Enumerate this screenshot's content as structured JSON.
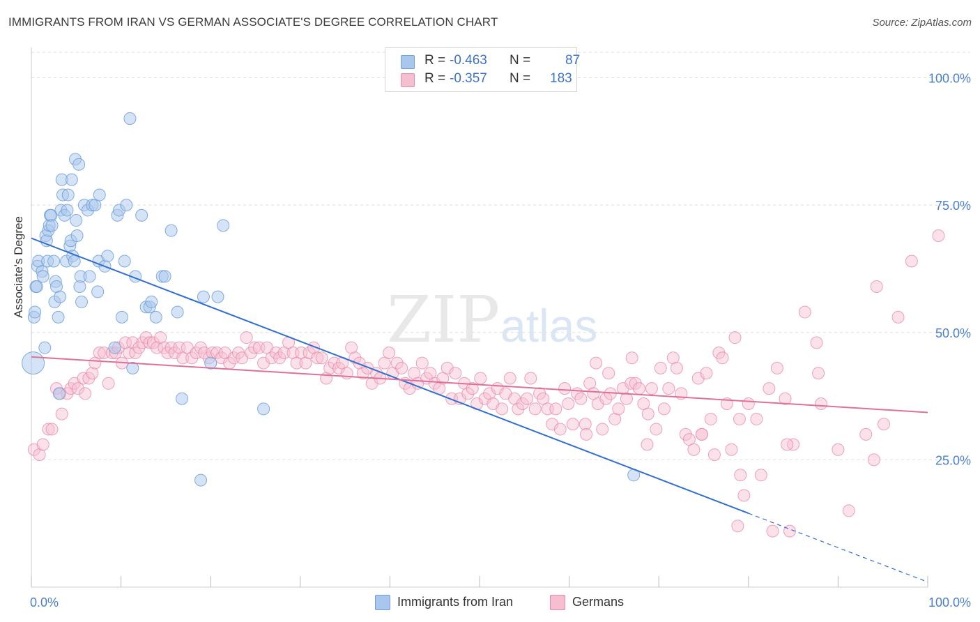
{
  "header": {
    "title": "IMMIGRANTS FROM IRAN VS GERMAN ASSOCIATE'S DEGREE CORRELATION CHART",
    "source": "Source: ZipAtlas.com"
  },
  "legend": {
    "rows": [
      {
        "r_label": "R =",
        "r_value": "-0.463",
        "n_label": "N =",
        "n_value": "87"
      },
      {
        "r_label": "R =",
        "r_value": "-0.357",
        "n_label": "N =",
        "n_value": "183"
      }
    ],
    "bottom": [
      {
        "label": "Immigrants from Iran"
      },
      {
        "label": "Germans"
      }
    ]
  },
  "colors": {
    "blue_fill": "#a9c7ee",
    "blue_stroke": "#6e9fd9",
    "blue_line": "#2f6fd0",
    "pink_fill": "#f6bfd0",
    "pink_stroke": "#e98bab",
    "pink_line": "#e0709a",
    "tick_label": "#4a7fd0",
    "grid": "#dddddd"
  },
  "watermark": {
    "zip": "ZIP",
    "atlas": "atlas"
  },
  "chart_data": {
    "type": "scatter",
    "title": "IMMIGRANTS FROM IRAN VS GERMAN ASSOCIATE'S DEGREE CORRELATION CHART",
    "xlabel": "",
    "ylabel": "Associate's Degree",
    "xlim": [
      0,
      100
    ],
    "ylim": [
      0,
      105
    ],
    "x_tick_labels": [
      {
        "value": 0,
        "label": "0.0%"
      },
      {
        "value": 100,
        "label": "100.0%"
      }
    ],
    "y_tick_labels": [
      {
        "value": 25,
        "label": "25.0%"
      },
      {
        "value": 50,
        "label": "50.0%"
      },
      {
        "value": 75,
        "label": "75.0%"
      },
      {
        "value": 100,
        "label": "100.0%"
      }
    ],
    "grid": "horizontal dashed",
    "legend_position": "top-center",
    "series": [
      {
        "name": "Immigrants from Iran",
        "color": "#a9c7ee",
        "r": -0.463,
        "n": 87,
        "trend": {
          "x0": 0,
          "y0": 68.5,
          "x1": 80,
          "y1": 14.5,
          "dashed_to": {
            "x": 100,
            "y": 1
          }
        },
        "points": [
          [
            0.2,
            44
          ],
          [
            0.3,
            53
          ],
          [
            0.4,
            54
          ],
          [
            0.5,
            59
          ],
          [
            0.6,
            59
          ],
          [
            0.7,
            63
          ],
          [
            0.8,
            64
          ],
          [
            1.2,
            62
          ],
          [
            1.3,
            61
          ],
          [
            1.5,
            47
          ],
          [
            1.6,
            69
          ],
          [
            1.7,
            68
          ],
          [
            1.8,
            64
          ],
          [
            1.9,
            70
          ],
          [
            2.0,
            71
          ],
          [
            2.1,
            73
          ],
          [
            2.2,
            73
          ],
          [
            2.3,
            71
          ],
          [
            2.5,
            64
          ],
          [
            2.6,
            56
          ],
          [
            2.7,
            60
          ],
          [
            2.8,
            59
          ],
          [
            3.0,
            53
          ],
          [
            3.1,
            38
          ],
          [
            3.2,
            57
          ],
          [
            3.3,
            74
          ],
          [
            3.4,
            80
          ],
          [
            3.5,
            77
          ],
          [
            3.7,
            73
          ],
          [
            3.9,
            64
          ],
          [
            4.0,
            74
          ],
          [
            4.1,
            77
          ],
          [
            4.3,
            67
          ],
          [
            4.4,
            68
          ],
          [
            4.5,
            80
          ],
          [
            4.6,
            65
          ],
          [
            4.8,
            64
          ],
          [
            4.9,
            84
          ],
          [
            5.0,
            72
          ],
          [
            5.1,
            69
          ],
          [
            5.3,
            83
          ],
          [
            5.4,
            59
          ],
          [
            5.5,
            61
          ],
          [
            5.6,
            56
          ],
          [
            5.9,
            75
          ],
          [
            6.3,
            74
          ],
          [
            6.5,
            61
          ],
          [
            6.8,
            75
          ],
          [
            7.1,
            75
          ],
          [
            7.4,
            58
          ],
          [
            7.5,
            64
          ],
          [
            7.6,
            77
          ],
          [
            8.2,
            63
          ],
          [
            8.5,
            65
          ],
          [
            9.3,
            47
          ],
          [
            9.6,
            73
          ],
          [
            9.8,
            74
          ],
          [
            10.1,
            53
          ],
          [
            10.4,
            64
          ],
          [
            10.6,
            75
          ],
          [
            11.0,
            92
          ],
          [
            11.3,
            43
          ],
          [
            11.6,
            61
          ],
          [
            12.3,
            73
          ],
          [
            12.8,
            55
          ],
          [
            13.2,
            55
          ],
          [
            13.4,
            56
          ],
          [
            13.9,
            53
          ],
          [
            14.6,
            61
          ],
          [
            14.9,
            61
          ],
          [
            15.6,
            70
          ],
          [
            16.3,
            54
          ],
          [
            16.8,
            37
          ],
          [
            18.9,
            21
          ],
          [
            19.2,
            57
          ],
          [
            20.0,
            44
          ],
          [
            20.8,
            57
          ],
          [
            21.4,
            71
          ],
          [
            25.9,
            35
          ],
          [
            67.2,
            22
          ]
        ]
      },
      {
        "name": "Germans",
        "color": "#f6bfd0",
        "r": -0.357,
        "n": 183,
        "trend": {
          "x0": 0,
          "y0": 45.2,
          "x1": 100,
          "y1": 34.3
        },
        "points": [
          [
            0.3,
            27
          ],
          [
            0.9,
            26
          ],
          [
            1.3,
            28
          ],
          [
            1.9,
            31
          ],
          [
            2.3,
            31
          ],
          [
            2.8,
            39
          ],
          [
            3.2,
            38
          ],
          [
            3.4,
            34
          ],
          [
            4.0,
            38
          ],
          [
            4.4,
            39
          ],
          [
            4.8,
            40
          ],
          [
            5.2,
            39
          ],
          [
            5.8,
            41
          ],
          [
            6.0,
            38
          ],
          [
            6.4,
            41
          ],
          [
            6.8,
            42
          ],
          [
            7.1,
            44
          ],
          [
            7.6,
            46
          ],
          [
            8.1,
            46
          ],
          [
            8.6,
            40
          ],
          [
            9.0,
            46
          ],
          [
            9.4,
            46
          ],
          [
            9.7,
            47
          ],
          [
            10.1,
            44
          ],
          [
            10.5,
            48
          ],
          [
            10.9,
            46
          ],
          [
            11.3,
            48
          ],
          [
            11.6,
            46
          ],
          [
            12.0,
            47
          ],
          [
            12.4,
            48
          ],
          [
            12.8,
            49
          ],
          [
            13.2,
            48
          ],
          [
            13.6,
            48
          ],
          [
            14.0,
            47
          ],
          [
            14.4,
            49
          ],
          [
            14.8,
            47
          ],
          [
            15.2,
            46
          ],
          [
            15.6,
            47
          ],
          [
            16.0,
            46
          ],
          [
            16.5,
            47
          ],
          [
            16.9,
            45
          ],
          [
            17.4,
            47
          ],
          [
            17.9,
            45
          ],
          [
            18.4,
            46
          ],
          [
            18.9,
            47
          ],
          [
            19.3,
            46
          ],
          [
            19.8,
            45
          ],
          [
            20.2,
            46
          ],
          [
            20.7,
            46
          ],
          [
            21.2,
            45
          ],
          [
            21.6,
            46
          ],
          [
            22.1,
            44
          ],
          [
            22.6,
            45
          ],
          [
            23.1,
            46
          ],
          [
            23.5,
            45
          ],
          [
            24.0,
            49
          ],
          [
            24.5,
            46
          ],
          [
            24.9,
            47
          ],
          [
            25.4,
            47
          ],
          [
            25.9,
            44
          ],
          [
            26.3,
            47
          ],
          [
            26.8,
            45
          ],
          [
            27.3,
            46
          ],
          [
            27.7,
            45
          ],
          [
            28.2,
            46
          ],
          [
            28.7,
            48
          ],
          [
            29.2,
            46
          ],
          [
            29.6,
            44
          ],
          [
            30.1,
            46
          ],
          [
            30.6,
            44
          ],
          [
            31.0,
            46
          ],
          [
            31.5,
            47
          ],
          [
            31.9,
            45
          ],
          [
            32.4,
            45
          ],
          [
            32.9,
            41
          ],
          [
            33.3,
            43
          ],
          [
            33.8,
            44
          ],
          [
            34.3,
            43
          ],
          [
            34.7,
            44
          ],
          [
            35.2,
            42
          ],
          [
            35.7,
            47
          ],
          [
            36.1,
            45
          ],
          [
            36.6,
            44
          ],
          [
            37.0,
            42
          ],
          [
            37.5,
            43
          ],
          [
            38.0,
            40
          ],
          [
            38.5,
            42
          ],
          [
            38.9,
            41
          ],
          [
            39.4,
            44
          ],
          [
            39.9,
            46
          ],
          [
            40.3,
            42
          ],
          [
            40.8,
            44
          ],
          [
            41.3,
            43
          ],
          [
            41.7,
            40
          ],
          [
            42.2,
            39
          ],
          [
            42.7,
            42
          ],
          [
            43.1,
            40
          ],
          [
            43.6,
            44
          ],
          [
            44.1,
            41
          ],
          [
            44.5,
            42
          ],
          [
            45.0,
            40
          ],
          [
            45.5,
            39
          ],
          [
            45.9,
            41
          ],
          [
            46.4,
            43
          ],
          [
            46.9,
            37
          ],
          [
            47.3,
            42
          ],
          [
            47.8,
            37
          ],
          [
            48.3,
            40
          ],
          [
            48.7,
            38
          ],
          [
            49.2,
            39
          ],
          [
            49.7,
            36
          ],
          [
            50.1,
            41
          ],
          [
            50.6,
            37
          ],
          [
            51.1,
            38
          ],
          [
            51.5,
            36
          ],
          [
            52.0,
            39
          ],
          [
            52.5,
            35
          ],
          [
            52.9,
            38
          ],
          [
            53.4,
            41
          ],
          [
            53.9,
            37
          ],
          [
            54.3,
            35
          ],
          [
            54.8,
            36
          ],
          [
            55.3,
            37
          ],
          [
            55.7,
            41
          ],
          [
            56.2,
            35
          ],
          [
            56.7,
            38
          ],
          [
            57.1,
            37
          ],
          [
            57.6,
            35
          ],
          [
            58.1,
            32
          ],
          [
            58.5,
            35
          ],
          [
            59.0,
            31
          ],
          [
            59.5,
            39
          ],
          [
            59.9,
            36
          ],
          [
            60.4,
            32
          ],
          [
            60.9,
            38
          ],
          [
            61.3,
            37
          ],
          [
            61.8,
            32
          ],
          [
            62.3,
            40
          ],
          [
            62.7,
            38
          ],
          [
            63.2,
            36
          ],
          [
            63.7,
            31
          ],
          [
            64.1,
            37
          ],
          [
            64.6,
            38
          ],
          [
            65.1,
            33
          ],
          [
            65.5,
            35
          ],
          [
            66.0,
            39
          ],
          [
            66.4,
            37
          ],
          [
            66.9,
            40
          ],
          [
            67.4,
            40
          ],
          [
            67.8,
            39
          ],
          [
            68.3,
            36
          ],
          [
            68.8,
            34
          ],
          [
            69.2,
            39
          ],
          [
            69.7,
            31
          ],
          [
            70.2,
            43
          ],
          [
            70.6,
            35
          ],
          [
            71.1,
            39
          ],
          [
            71.6,
            45
          ],
          [
            72.0,
            43
          ],
          [
            72.5,
            38
          ],
          [
            73.0,
            30
          ],
          [
            73.4,
            29
          ],
          [
            73.9,
            27
          ],
          [
            74.4,
            41
          ],
          [
            74.8,
            30
          ],
          [
            75.3,
            42
          ],
          [
            75.8,
            33
          ],
          [
            76.2,
            26
          ],
          [
            76.7,
            46
          ],
          [
            77.1,
            45
          ],
          [
            77.6,
            36
          ],
          [
            78.1,
            27
          ],
          [
            78.5,
            49
          ],
          [
            79.0,
            33
          ],
          [
            79.5,
            18
          ],
          [
            80.0,
            36
          ],
          [
            80.9,
            33
          ],
          [
            81.4,
            22
          ],
          [
            82.3,
            39
          ],
          [
            83.2,
            43
          ],
          [
            84.1,
            37
          ],
          [
            85.0,
            28
          ],
          [
            86.3,
            54
          ],
          [
            87.6,
            48
          ],
          [
            88.1,
            36
          ],
          [
            90.0,
            27
          ],
          [
            91.2,
            15
          ],
          [
            93.1,
            30
          ],
          [
            94.3,
            59
          ],
          [
            95.1,
            32
          ],
          [
            96.7,
            53
          ],
          [
            98.2,
            64
          ],
          [
            101.2,
            69
          ],
          [
            63.0,
            44
          ],
          [
            64.4,
            42
          ],
          [
            67.0,
            45
          ],
          [
            78.8,
            12
          ],
          [
            82.7,
            11
          ],
          [
            84.6,
            11
          ],
          [
            61.9,
            30
          ],
          [
            74.8,
            30
          ],
          [
            68.7,
            28
          ],
          [
            79.1,
            22
          ],
          [
            84.3,
            28
          ],
          [
            87.8,
            42
          ],
          [
            94.0,
            25
          ]
        ]
      }
    ]
  }
}
